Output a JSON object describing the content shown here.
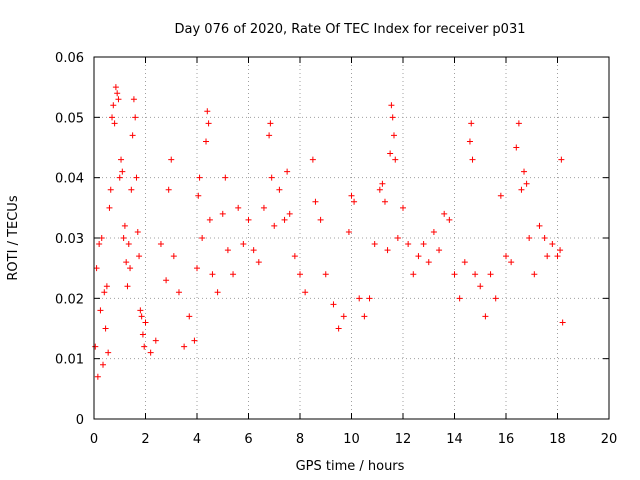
{
  "chart_data": {
    "type": "scatter",
    "title": "Day 076 of 2020, Rate Of TEC Index for receiver p031",
    "xlabel": "GPS time / hours",
    "ylabel": "ROTI / TECUs",
    "xlim": [
      0,
      20
    ],
    "ylim": [
      0,
      0.06
    ],
    "xticks": [
      0,
      2,
      4,
      6,
      8,
      10,
      12,
      14,
      16,
      18,
      20
    ],
    "yticks": [
      0,
      0.01,
      0.02,
      0.03,
      0.04,
      0.05,
      0.06
    ],
    "xtick_labels": [
      "0",
      "2",
      "4",
      "6",
      "8",
      "10",
      "12",
      "14",
      "16",
      "18",
      "20"
    ],
    "ytick_labels": [
      "0",
      "0.01",
      "0.02",
      "0.03",
      "0.04",
      "0.05",
      "0.06"
    ],
    "grid": true,
    "marker": "+",
    "color": "#ff0000",
    "data_range_hours": [
      0,
      18.2
    ],
    "series": [
      {
        "name": "ROTI",
        "points": [
          [
            0.05,
            0.012
          ],
          [
            0.1,
            0.025
          ],
          [
            0.15,
            0.007
          ],
          [
            0.2,
            0.029
          ],
          [
            0.25,
            0.018
          ],
          [
            0.3,
            0.03
          ],
          [
            0.35,
            0.009
          ],
          [
            0.4,
            0.021
          ],
          [
            0.45,
            0.015
          ],
          [
            0.5,
            0.022
          ],
          [
            0.55,
            0.011
          ],
          [
            0.6,
            0.035
          ],
          [
            0.65,
            0.038
          ],
          [
            0.7,
            0.05
          ],
          [
            0.75,
            0.052
          ],
          [
            0.8,
            0.049
          ],
          [
            0.85,
            0.055
          ],
          [
            0.9,
            0.054
          ],
          [
            0.95,
            0.053
          ],
          [
            1.0,
            0.04
          ],
          [
            1.05,
            0.043
          ],
          [
            1.1,
            0.041
          ],
          [
            1.15,
            0.03
          ],
          [
            1.2,
            0.032
          ],
          [
            1.25,
            0.026
          ],
          [
            1.3,
            0.022
          ],
          [
            1.35,
            0.029
          ],
          [
            1.4,
            0.025
          ],
          [
            1.45,
            0.038
          ],
          [
            1.5,
            0.047
          ],
          [
            1.55,
            0.053
          ],
          [
            1.6,
            0.05
          ],
          [
            1.65,
            0.04
          ],
          [
            1.7,
            0.031
          ],
          [
            1.75,
            0.027
          ],
          [
            1.8,
            0.018
          ],
          [
            1.85,
            0.017
          ],
          [
            1.9,
            0.014
          ],
          [
            1.95,
            0.012
          ],
          [
            2.0,
            0.016
          ],
          [
            2.2,
            0.011
          ],
          [
            2.4,
            0.013
          ],
          [
            2.6,
            0.029
          ],
          [
            2.8,
            0.023
          ],
          [
            2.9,
            0.038
          ],
          [
            3.0,
            0.043
          ],
          [
            3.1,
            0.027
          ],
          [
            3.3,
            0.021
          ],
          [
            3.5,
            0.012
          ],
          [
            3.7,
            0.017
          ],
          [
            3.9,
            0.013
          ],
          [
            4.0,
            0.025
          ],
          [
            4.05,
            0.037
          ],
          [
            4.1,
            0.04
          ],
          [
            4.2,
            0.03
          ],
          [
            4.35,
            0.046
          ],
          [
            4.4,
            0.051
          ],
          [
            4.45,
            0.049
          ],
          [
            4.5,
            0.033
          ],
          [
            4.6,
            0.024
          ],
          [
            4.8,
            0.021
          ],
          [
            5.0,
            0.034
          ],
          [
            5.1,
            0.04
          ],
          [
            5.2,
            0.028
          ],
          [
            5.4,
            0.024
          ],
          [
            5.6,
            0.035
          ],
          [
            5.8,
            0.029
          ],
          [
            6.0,
            0.033
          ],
          [
            6.2,
            0.028
          ],
          [
            6.4,
            0.026
          ],
          [
            6.6,
            0.035
          ],
          [
            6.8,
            0.047
          ],
          [
            6.85,
            0.049
          ],
          [
            6.9,
            0.04
          ],
          [
            7.0,
            0.032
          ],
          [
            7.2,
            0.038
          ],
          [
            7.4,
            0.033
          ],
          [
            7.5,
            0.041
          ],
          [
            7.6,
            0.034
          ],
          [
            7.8,
            0.027
          ],
          [
            8.0,
            0.024
          ],
          [
            8.2,
            0.021
          ],
          [
            8.5,
            0.043
          ],
          [
            8.6,
            0.036
          ],
          [
            8.8,
            0.033
          ],
          [
            9.0,
            0.024
          ],
          [
            9.3,
            0.019
          ],
          [
            9.5,
            0.015
          ],
          [
            9.7,
            0.017
          ],
          [
            9.9,
            0.031
          ],
          [
            10.0,
            0.037
          ],
          [
            10.1,
            0.036
          ],
          [
            10.3,
            0.02
          ],
          [
            10.5,
            0.017
          ],
          [
            10.7,
            0.02
          ],
          [
            10.9,
            0.029
          ],
          [
            11.1,
            0.038
          ],
          [
            11.2,
            0.039
          ],
          [
            11.3,
            0.036
          ],
          [
            11.4,
            0.028
          ],
          [
            11.5,
            0.044
          ],
          [
            11.55,
            0.052
          ],
          [
            11.6,
            0.05
          ],
          [
            11.65,
            0.047
          ],
          [
            11.7,
            0.043
          ],
          [
            11.8,
            0.03
          ],
          [
            12.0,
            0.035
          ],
          [
            12.2,
            0.029
          ],
          [
            12.4,
            0.024
          ],
          [
            12.6,
            0.027
          ],
          [
            12.8,
            0.029
          ],
          [
            13.0,
            0.026
          ],
          [
            13.2,
            0.031
          ],
          [
            13.4,
            0.028
          ],
          [
            13.6,
            0.034
          ],
          [
            13.8,
            0.033
          ],
          [
            14.0,
            0.024
          ],
          [
            14.2,
            0.02
          ],
          [
            14.4,
            0.026
          ],
          [
            14.6,
            0.046
          ],
          [
            14.65,
            0.049
          ],
          [
            14.7,
            0.043
          ],
          [
            14.8,
            0.024
          ],
          [
            15.0,
            0.022
          ],
          [
            15.2,
            0.017
          ],
          [
            15.4,
            0.024
          ],
          [
            15.6,
            0.02
          ],
          [
            15.8,
            0.037
          ],
          [
            16.0,
            0.027
          ],
          [
            16.2,
            0.026
          ],
          [
            16.4,
            0.045
          ],
          [
            16.5,
            0.049
          ],
          [
            16.6,
            0.038
          ],
          [
            16.7,
            0.041
          ],
          [
            16.8,
            0.039
          ],
          [
            16.9,
            0.03
          ],
          [
            17.1,
            0.024
          ],
          [
            17.3,
            0.032
          ],
          [
            17.5,
            0.03
          ],
          [
            17.6,
            0.027
          ],
          [
            17.8,
            0.029
          ],
          [
            18.0,
            0.027
          ],
          [
            18.1,
            0.028
          ],
          [
            18.15,
            0.043
          ],
          [
            18.2,
            0.016
          ]
        ]
      }
    ]
  }
}
